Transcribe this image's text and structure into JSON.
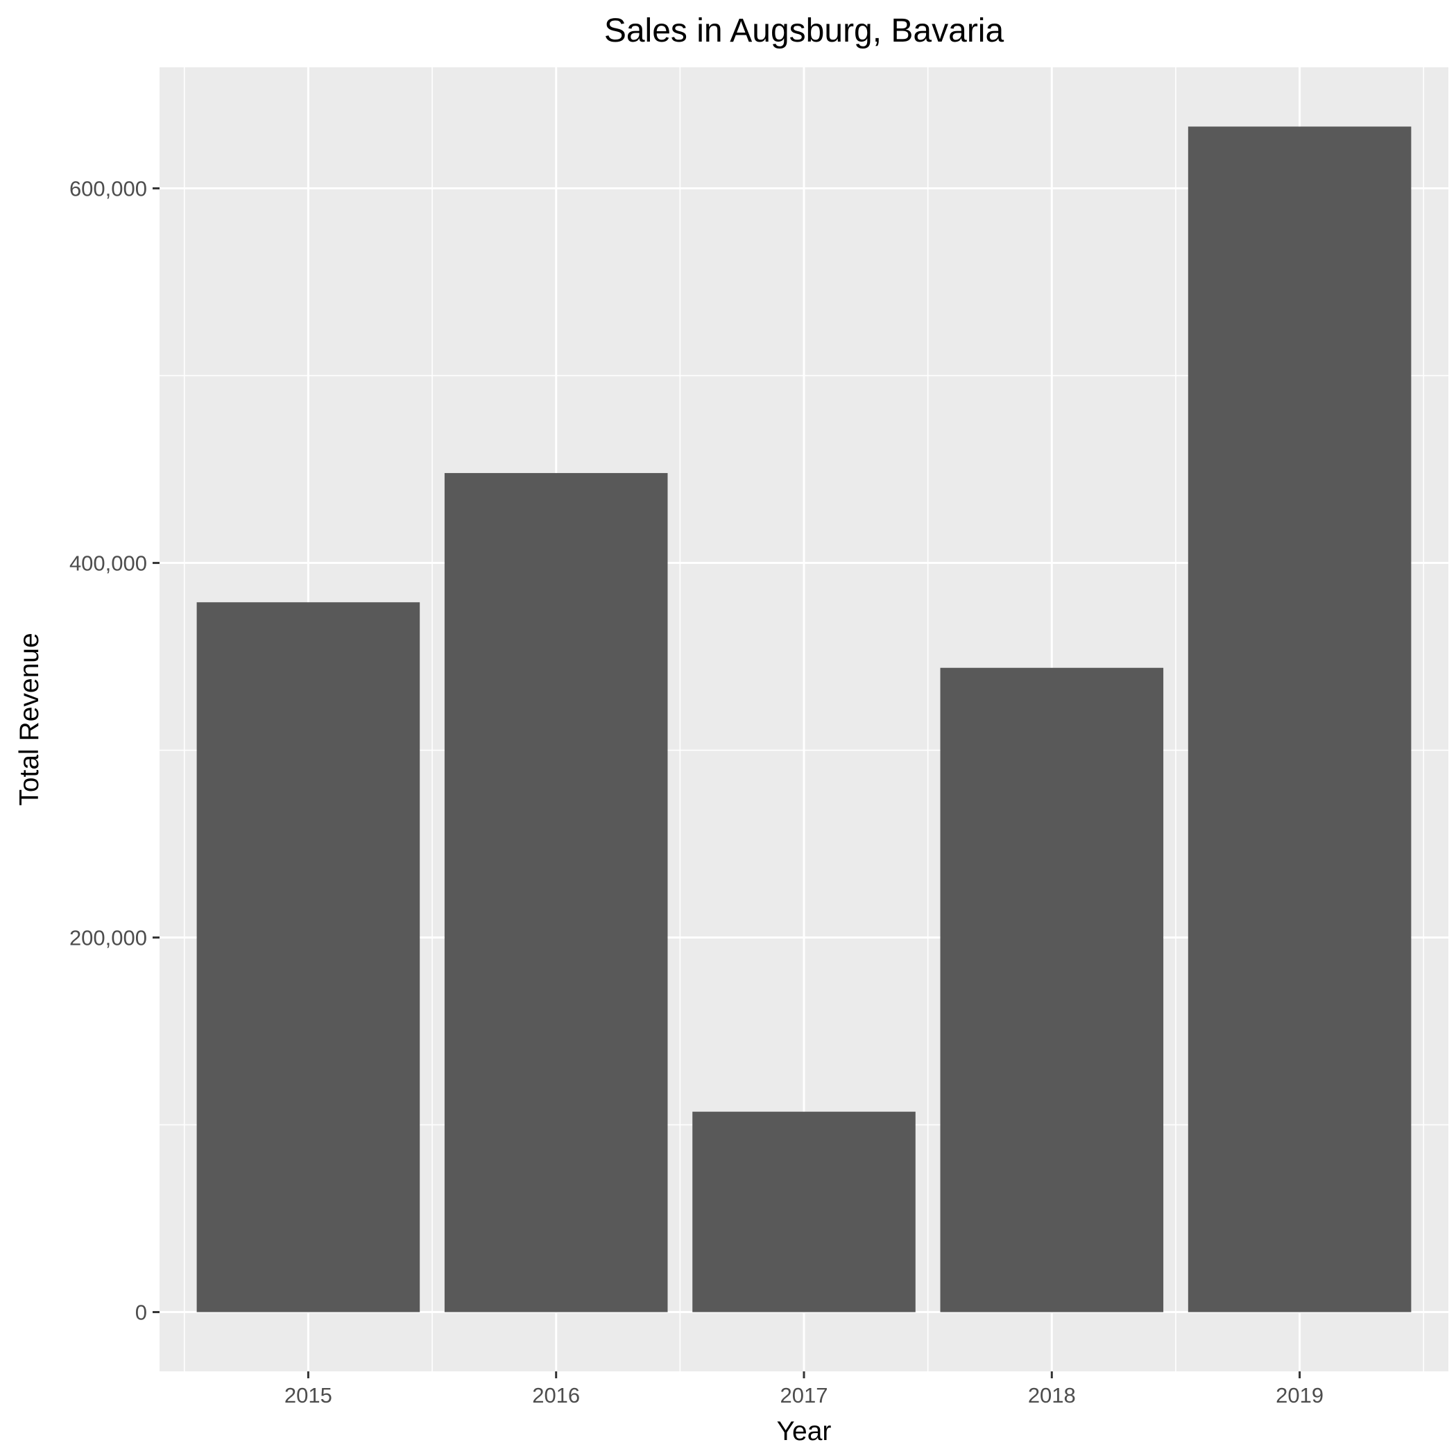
{
  "chart_data": {
    "type": "bar",
    "title": "Sales in Augsburg, Bavaria",
    "xlabel": "Year",
    "ylabel": "Total Revenue",
    "categories": [
      "2015",
      "2016",
      "2017",
      "2018",
      "2019"
    ],
    "values": [
      379000,
      448000,
      107000,
      344000,
      633000
    ],
    "ylim": [
      -31650,
      664650
    ],
    "yticks": [
      0,
      200000,
      400000,
      600000
    ],
    "ytick_labels": [
      "0",
      "200,000",
      "400,000",
      "600,000"
    ],
    "grid": true,
    "legend": "none",
    "colors": {
      "bar": "#595959",
      "panel_background": "#ebebeb",
      "grid": "#ffffff",
      "tick": "#333333",
      "tick_label": "#4d4d4d"
    }
  }
}
